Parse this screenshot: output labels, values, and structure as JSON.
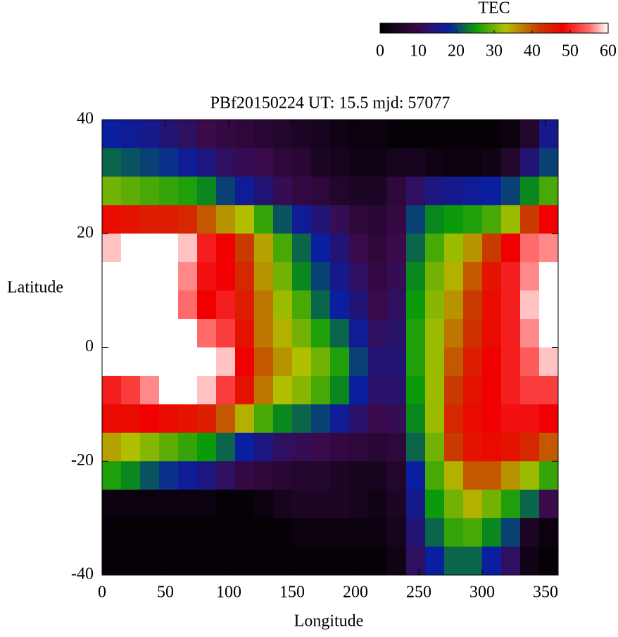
{
  "chart_data": {
    "type": "heatmap",
    "title": "PBf20150224  UT: 15.5  mjd: 57077",
    "x_label": "Longitude",
    "y_label": "Latitude",
    "colorbar_label": "TEC",
    "x": [
      7.5,
      22.5,
      37.5,
      52.5,
      67.5,
      82.5,
      97.5,
      112.5,
      127.5,
      142.5,
      157.5,
      172.5,
      187.5,
      202.5,
      217.5,
      232.5,
      247.5,
      262.5,
      277.5,
      292.5,
      307.5,
      322.5,
      337.5,
      352.5
    ],
    "y": [
      37.5,
      32.5,
      27.5,
      22.5,
      17.5,
      12.5,
      7.5,
      2.5,
      -2.5,
      -7.5,
      -12.5,
      -17.5,
      -22.5,
      -27.5,
      -32.5,
      -37.5
    ],
    "z": [
      [
        18,
        17,
        16,
        14,
        12,
        10,
        9,
        8,
        7,
        6,
        5,
        4,
        3,
        2,
        2,
        1,
        1,
        1,
        1,
        1,
        1,
        2,
        6,
        16
      ],
      [
        22,
        21,
        20,
        19,
        17,
        15,
        12,
        11,
        10,
        8,
        7,
        5,
        4,
        3,
        3,
        4,
        4,
        3,
        2,
        2,
        3,
        6,
        14,
        20
      ],
      [
        30,
        29,
        28,
        27,
        26,
        24,
        20,
        17,
        14,
        11,
        9,
        8,
        6,
        5,
        5,
        8,
        12,
        15,
        16,
        17,
        18,
        20,
        24,
        28
      ],
      [
        47,
        46,
        45,
        45,
        44,
        40,
        36,
        33,
        27,
        21,
        17,
        14,
        11,
        8,
        7,
        9,
        20,
        24,
        25,
        26,
        28,
        32,
        42,
        48
      ],
      [
        58,
        60,
        60,
        60,
        58,
        50,
        48,
        42,
        35,
        28,
        22,
        18,
        14,
        10,
        8,
        10,
        22,
        28,
        32,
        36,
        42,
        48,
        55,
        56
      ],
      [
        60,
        60,
        60,
        60,
        56,
        49,
        48,
        44,
        36,
        30,
        24,
        20,
        16,
        12,
        9,
        11,
        24,
        30,
        34,
        40,
        46,
        50,
        56,
        60
      ],
      [
        60,
        60,
        60,
        60,
        55,
        48,
        50,
        45,
        38,
        32,
        28,
        22,
        18,
        14,
        10,
        12,
        25,
        31,
        36,
        42,
        47,
        50,
        58,
        60
      ],
      [
        60,
        60,
        60,
        60,
        60,
        55,
        52,
        46,
        38,
        34,
        30,
        26,
        22,
        17,
        12,
        13,
        26,
        32,
        38,
        43,
        47,
        50,
        56,
        60
      ],
      [
        60,
        60,
        60,
        60,
        60,
        60,
        58,
        48,
        40,
        36,
        33,
        30,
        26,
        20,
        14,
        14,
        26,
        32,
        40,
        45,
        48,
        50,
        54,
        58
      ],
      [
        50,
        52,
        56,
        60,
        60,
        58,
        52,
        46,
        38,
        33,
        31,
        28,
        24,
        18,
        13,
        13,
        25,
        32,
        42,
        46,
        48,
        50,
        52,
        52
      ],
      [
        47,
        47,
        48,
        47,
        46,
        45,
        40,
        34,
        28,
        24,
        22,
        20,
        17,
        13,
        10,
        11,
        24,
        32,
        44,
        47,
        48,
        49,
        49,
        48
      ],
      [
        35,
        33,
        31,
        29,
        27,
        25,
        22,
        18,
        15,
        12,
        11,
        10,
        9,
        8,
        7,
        8,
        22,
        30,
        42,
        46,
        47,
        46,
        44,
        40
      ],
      [
        26,
        24,
        21,
        19,
        17,
        15,
        12,
        9,
        8,
        7,
        6,
        6,
        5,
        4,
        4,
        6,
        18,
        28,
        34,
        40,
        40,
        36,
        32,
        27
      ],
      [
        2,
        2,
        2,
        2,
        2,
        2,
        1,
        1,
        2,
        4,
        5,
        5,
        5,
        4,
        3,
        5,
        16,
        25,
        30,
        34,
        30,
        26,
        22,
        10
      ],
      [
        1,
        1,
        1,
        1,
        1,
        1,
        1,
        1,
        1,
        1,
        2,
        2,
        2,
        2,
        2,
        4,
        14,
        22,
        27,
        28,
        24,
        20,
        5,
        2
      ],
      [
        1,
        1,
        1,
        1,
        1,
        1,
        1,
        1,
        1,
        1,
        1,
        1,
        1,
        1,
        1,
        3,
        12,
        18,
        22,
        22,
        18,
        12,
        3,
        1
      ]
    ],
    "xlim": [
      0,
      360
    ],
    "ylim": [
      -40,
      40
    ],
    "xticks": [
      0,
      50,
      100,
      150,
      200,
      250,
      300,
      350
    ],
    "yticks": [
      -40,
      -20,
      0,
      20,
      40
    ],
    "zlim": [
      0,
      60
    ],
    "zticks": [
      0,
      10,
      20,
      30,
      40,
      50,
      60
    ],
    "colormap": [
      {
        "value": 0,
        "color": "#000000"
      },
      {
        "value": 10,
        "color": "#3a0a4a"
      },
      {
        "value": 18,
        "color": "#0a1ea0"
      },
      {
        "value": 25,
        "color": "#0a9a0a"
      },
      {
        "value": 33,
        "color": "#b0c000"
      },
      {
        "value": 42,
        "color": "#c83a00"
      },
      {
        "value": 48,
        "color": "#f00000"
      },
      {
        "value": 55,
        "color": "#ff6a6a"
      },
      {
        "value": 60,
        "color": "#ffffff"
      }
    ]
  }
}
